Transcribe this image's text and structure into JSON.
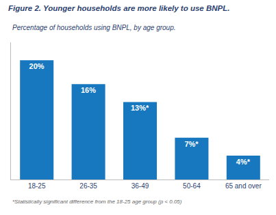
{
  "chart_data": {
    "type": "bar",
    "title": "Figure 2. Younger households are more likely to use BNPL.",
    "subtitle": "Percentage of households using BNPL, by age group.",
    "annotations": [
      "*Statistically significant difference from the 18-25 age group (p < 0.05)"
    ],
    "categories": [
      "18-25",
      "26-35",
      "36-49",
      "50-64",
      "65 and over"
    ],
    "values": [
      20,
      16,
      13,
      7,
      4
    ],
    "value_labels": [
      "20%",
      "16%",
      "13%*",
      "7%*",
      "4%*"
    ],
    "data_labels": true,
    "color": "#1778bf",
    "ylim": [
      0,
      23
    ],
    "grid": false,
    "tick_labels": "x"
  }
}
